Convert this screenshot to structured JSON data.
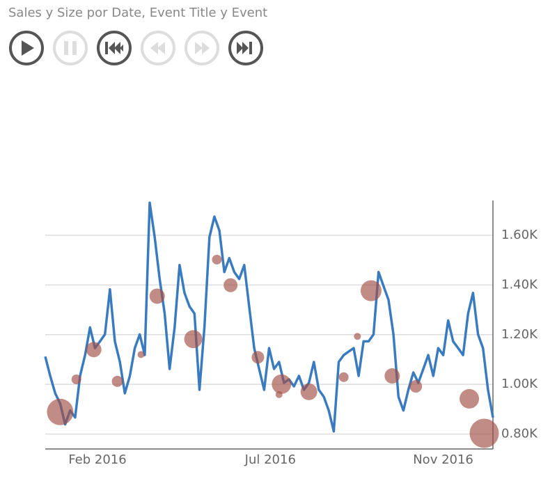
{
  "chart_data": {
    "type": "line",
    "title": "Sales y Size por Date, Event Title y Event",
    "x": [
      0,
      4,
      8,
      12,
      16,
      20,
      24,
      28,
      32,
      36,
      40,
      44,
      48,
      52,
      56,
      60,
      64,
      68,
      72,
      76,
      80,
      84,
      88,
      92,
      96,
      100,
      104,
      108,
      112,
      116,
      120,
      124,
      128,
      132,
      136,
      140,
      144,
      148,
      152,
      156,
      160,
      164,
      168,
      172,
      176,
      180,
      184,
      188,
      192,
      196,
      200,
      204,
      208,
      212,
      216,
      220,
      224,
      228,
      232,
      236,
      240,
      244,
      248,
      252,
      256,
      260,
      264,
      268,
      272,
      276,
      280,
      284,
      288,
      292,
      296,
      300,
      304,
      308,
      312,
      316,
      320,
      324,
      328,
      332,
      336,
      340,
      344,
      348,
      352,
      356,
      360
    ],
    "series": [
      {
        "color": "#3a7abf",
        "values": [
          1112,
          1034,
          964,
          923,
          839,
          895,
          867,
          1034,
          1118,
          1229,
          1146,
          1173,
          1201,
          1382,
          1173,
          1090,
          964,
          1034,
          1146,
          1201,
          1118,
          1731,
          1592,
          1424,
          1285,
          1062,
          1229,
          1480,
          1368,
          1313,
          1285,
          978,
          1229,
          1592,
          1675,
          1619,
          1452,
          1508,
          1452,
          1424,
          1480,
          1313,
          1146,
          1062,
          978,
          1146,
          1062,
          1090,
          1006,
          1020,
          992,
          1034,
          978,
          1006,
          1090,
          978,
          950,
          895,
          811,
          1090,
          1118,
          1132,
          1146,
          1034,
          1173,
          1173,
          1201,
          1452,
          1396,
          1340,
          1201,
          950,
          895,
          978,
          1048,
          1006,
          1062,
          1118,
          1034,
          1146,
          1118,
          1257,
          1173,
          1146,
          1118,
          1285,
          1368,
          1201,
          1146,
          978,
          867
        ]
      }
    ],
    "bubbles": {
      "color": "#a24f45",
      "x": [
        12,
        25,
        39,
        58,
        77,
        90,
        119,
        138,
        149,
        171,
        188,
        190,
        212,
        240,
        251,
        262,
        279,
        298,
        341,
        353
      ],
      "values": [
        889,
        1020,
        1140,
        1012,
        1120,
        1355,
        1182,
        1502,
        1399,
        1109,
        959,
        1001,
        970,
        1029,
        1193,
        1377,
        1034,
        992,
        942,
        803
      ],
      "sizes": [
        19,
        7,
        11,
        8,
        5,
        11,
        13,
        7,
        10,
        9,
        5,
        14,
        12,
        7,
        5,
        15,
        11,
        9,
        14,
        21
      ]
    },
    "xlim": [
      0,
      360
    ],
    "xticks": [
      {
        "value": 42,
        "label": "Feb 2016"
      },
      {
        "value": 181,
        "label": "Jul 2016"
      },
      {
        "value": 320,
        "label": "Nov 2016"
      }
    ],
    "ylim": [
      740,
      1740
    ],
    "yticks": [
      {
        "value": 800,
        "label": "0.80K"
      },
      {
        "value": 1000,
        "label": "1.00K"
      },
      {
        "value": 1200,
        "label": "1.20K"
      },
      {
        "value": 1400,
        "label": "1.40K"
      },
      {
        "value": 1600,
        "label": "1.60K"
      }
    ],
    "grid": true
  }
}
